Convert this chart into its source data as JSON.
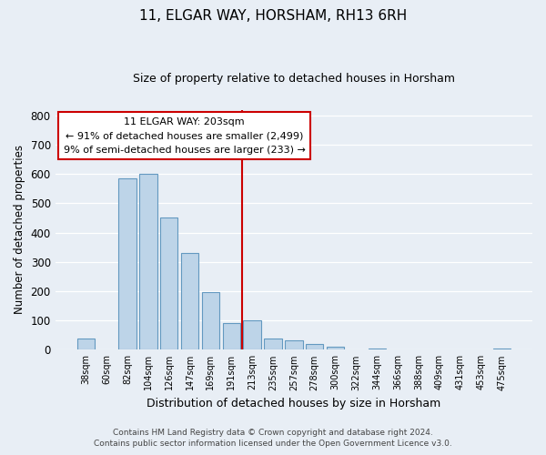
{
  "title": "11, ELGAR WAY, HORSHAM, RH13 6RH",
  "subtitle": "Size of property relative to detached houses in Horsham",
  "xlabel": "Distribution of detached houses by size in Horsham",
  "ylabel": "Number of detached properties",
  "bar_labels": [
    "38sqm",
    "60sqm",
    "82sqm",
    "104sqm",
    "126sqm",
    "147sqm",
    "169sqm",
    "191sqm",
    "213sqm",
    "235sqm",
    "257sqm",
    "278sqm",
    "300sqm",
    "322sqm",
    "344sqm",
    "366sqm",
    "388sqm",
    "409sqm",
    "431sqm",
    "453sqm",
    "475sqm"
  ],
  "bar_heights": [
    38,
    0,
    585,
    600,
    452,
    332,
    196,
    90,
    100,
    38,
    31,
    20,
    11,
    0,
    5,
    0,
    0,
    0,
    0,
    0,
    5
  ],
  "bar_color": "#bdd4e8",
  "bar_edge_color": "#6399c0",
  "vline_color": "#cc0000",
  "annotation_title": "11 ELGAR WAY: 203sqm",
  "annotation_line1": "← 91% of detached houses are smaller (2,499)",
  "annotation_line2": "9% of semi-detached houses are larger (233) →",
  "annotation_box_color": "#ffffff",
  "annotation_box_edge": "#cc0000",
  "ylim": [
    0,
    820
  ],
  "yticks": [
    0,
    100,
    200,
    300,
    400,
    500,
    600,
    700,
    800
  ],
  "footer1": "Contains HM Land Registry data © Crown copyright and database right 2024.",
  "footer2": "Contains public sector information licensed under the Open Government Licence v3.0.",
  "bg_color": "#e8eef5",
  "grid_color": "#ffffff"
}
